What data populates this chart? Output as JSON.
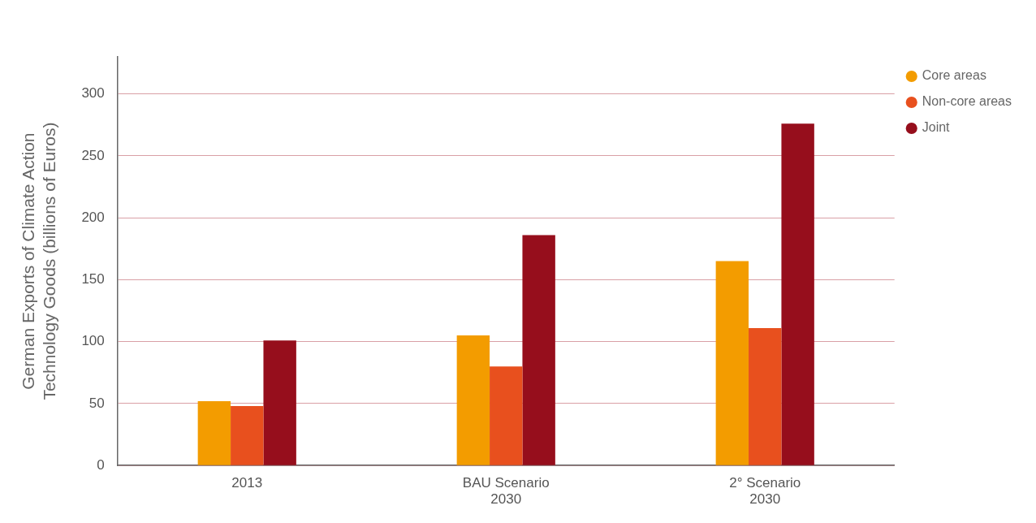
{
  "chart_data": {
    "type": "bar",
    "ylabel": "German Exports of Climate Action\nTechnology Goods (billions of Euros)",
    "categories": [
      "2013",
      "BAU Scenario\n2030",
      "2° Scenario\n2030"
    ],
    "series": [
      {
        "name": "Core areas",
        "color": "#f39c00",
        "values": [
          52,
          105,
          165
        ]
      },
      {
        "name": "Non-core areas",
        "color": "#e8501e",
        "values": [
          48,
          80,
          111
        ]
      },
      {
        "name": "Joint",
        "color": "#960e1c",
        "values": [
          101,
          186,
          276
        ]
      }
    ],
    "ylim": [
      0,
      330
    ],
    "yticks": [
      0,
      50,
      100,
      150,
      200,
      250,
      300
    ],
    "grid": "y",
    "legend": "top right"
  }
}
